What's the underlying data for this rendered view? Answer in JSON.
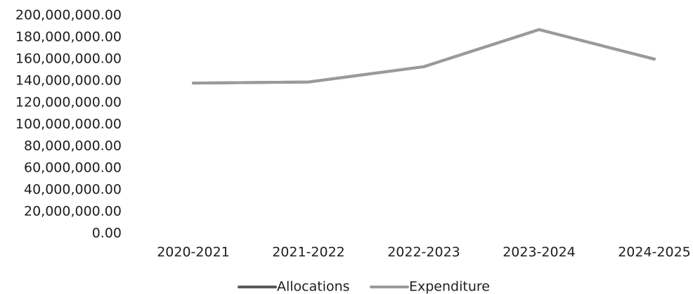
{
  "chart_data": {
    "type": "line",
    "title": "",
    "xlabel": "",
    "ylabel": "",
    "categories": [
      "2020-2021",
      "2021-2022",
      "2022-2023",
      "2023-2024",
      "2024-2025"
    ],
    "y_ticks": [
      "0.00",
      "20,000,000.00",
      "40,000,000.00",
      "60,000,000.00",
      "80,000,000.00",
      "100,000,000.00",
      "120,000,000.00",
      "140,000,000.00",
      "160,000,000.00",
      "180,000,000.00",
      "200,000,000.00"
    ],
    "ylim": [
      0,
      200000000
    ],
    "grid": false,
    "legend": "bottom",
    "series": [
      {
        "name": "Allocations",
        "color": "#5a5a5a",
        "values": [
          138000000,
          139000000,
          153000000,
          187000000,
          160000000
        ]
      },
      {
        "name": "Expenditure",
        "color": "#9a9a9a",
        "values": [
          138000000,
          139000000,
          153000000,
          187000000,
          160000000
        ]
      }
    ]
  }
}
